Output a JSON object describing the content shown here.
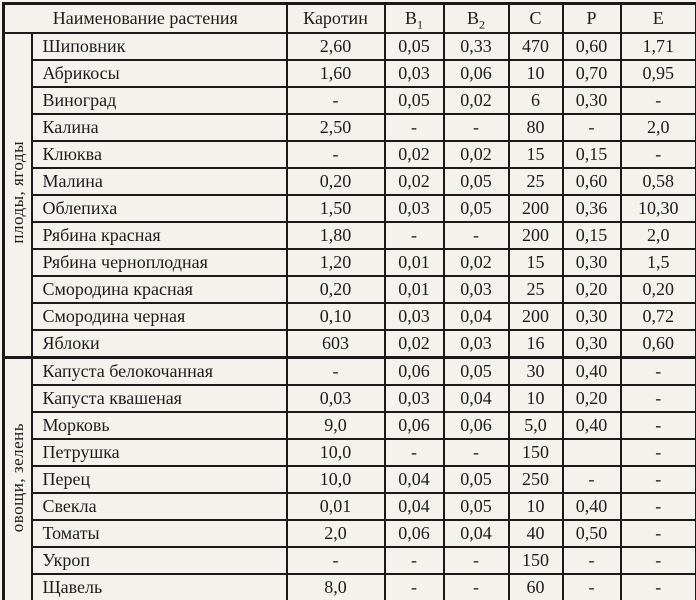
{
  "table": {
    "header": {
      "name_col": "Наименование растения",
      "cols": [
        {
          "base": "Каротин"
        },
        {
          "base": "B",
          "sub": "1"
        },
        {
          "base": "B",
          "sub": "2"
        },
        {
          "base": "C"
        },
        {
          "base": "P"
        },
        {
          "base": "E"
        }
      ]
    },
    "sections": [
      {
        "label": "плоды, ягоды",
        "rows": [
          {
            "name": "Шиповник",
            "values": [
              "2,60",
              "0,05",
              "0,33",
              "470",
              "0,60",
              "1,71"
            ]
          },
          {
            "name": "Абрикосы",
            "values": [
              "1,60",
              "0,03",
              "0,06",
              "10",
              "0,70",
              "0,95"
            ]
          },
          {
            "name": "Виноград",
            "values": [
              "-",
              "0,05",
              "0,02",
              "6",
              "0,30",
              "-"
            ]
          },
          {
            "name": "Калина",
            "values": [
              "2,50",
              "-",
              "-",
              "80",
              "-",
              "2,0"
            ]
          },
          {
            "name": "Клюква",
            "values": [
              "-",
              "0,02",
              "0,02",
              "15",
              "0,15",
              "-"
            ]
          },
          {
            "name": "Малина",
            "values": [
              "0,20",
              "0,02",
              "0,05",
              "25",
              "0,60",
              "0,58"
            ]
          },
          {
            "name": "Облепиха",
            "values": [
              "1,50",
              "0,03",
              "0,05",
              "200",
              "0,36",
              "10,30"
            ]
          },
          {
            "name": "Рябина красная",
            "values": [
              "1,80",
              "-",
              "-",
              "200",
              "0,15",
              "2,0"
            ]
          },
          {
            "name": "Рябина черноплодная",
            "values": [
              "1,20",
              "0,01",
              "0,02",
              "15",
              "0,30",
              "1,5"
            ]
          },
          {
            "name": "Смородина красная",
            "values": [
              "0,20",
              "0,01",
              "0,03",
              "25",
              "0,20",
              "0,20"
            ]
          },
          {
            "name": "Смородина черная",
            "values": [
              "0,10",
              "0,03",
              "0,04",
              "200",
              "0,30",
              "0,72"
            ]
          },
          {
            "name": "Яблоки",
            "values": [
              "603",
              "0,02",
              "0,03",
              "16",
              "0,30",
              "0,60"
            ]
          }
        ]
      },
      {
        "label": "овощи, зелень",
        "rows": [
          {
            "name": "Капуста белокочанная",
            "values": [
              "-",
              "0,06",
              "0,05",
              "30",
              "0,40",
              "-"
            ]
          },
          {
            "name": "Капуста квашеная",
            "values": [
              "0,03",
              "0,03",
              "0,04",
              "10",
              "0,20",
              "-"
            ]
          },
          {
            "name": "Морковь",
            "values": [
              "9,0",
              "0,06",
              "0,06",
              "5,0",
              "0,40",
              "-"
            ]
          },
          {
            "name": "Петрушка",
            "values": [
              "10,0",
              "-",
              "-",
              "150",
              "",
              "-"
            ]
          },
          {
            "name": "Перец",
            "values": [
              "10,0",
              "0,04",
              "0,05",
              "250",
              "-",
              "-"
            ]
          },
          {
            "name": "Свекла",
            "values": [
              "0,01",
              "0,04",
              "0,05",
              "10",
              "0,40",
              "-"
            ]
          },
          {
            "name": "Томаты",
            "values": [
              "2,0",
              "0,06",
              "0,04",
              "40",
              "0,50",
              "-"
            ]
          },
          {
            "name": "Укроп",
            "values": [
              "-",
              "-",
              "-",
              "150",
              "-",
              "-"
            ]
          },
          {
            "name": "Щавель",
            "values": [
              "8,0",
              "-",
              "-",
              "60",
              "-",
              "-"
            ]
          }
        ]
      }
    ]
  }
}
